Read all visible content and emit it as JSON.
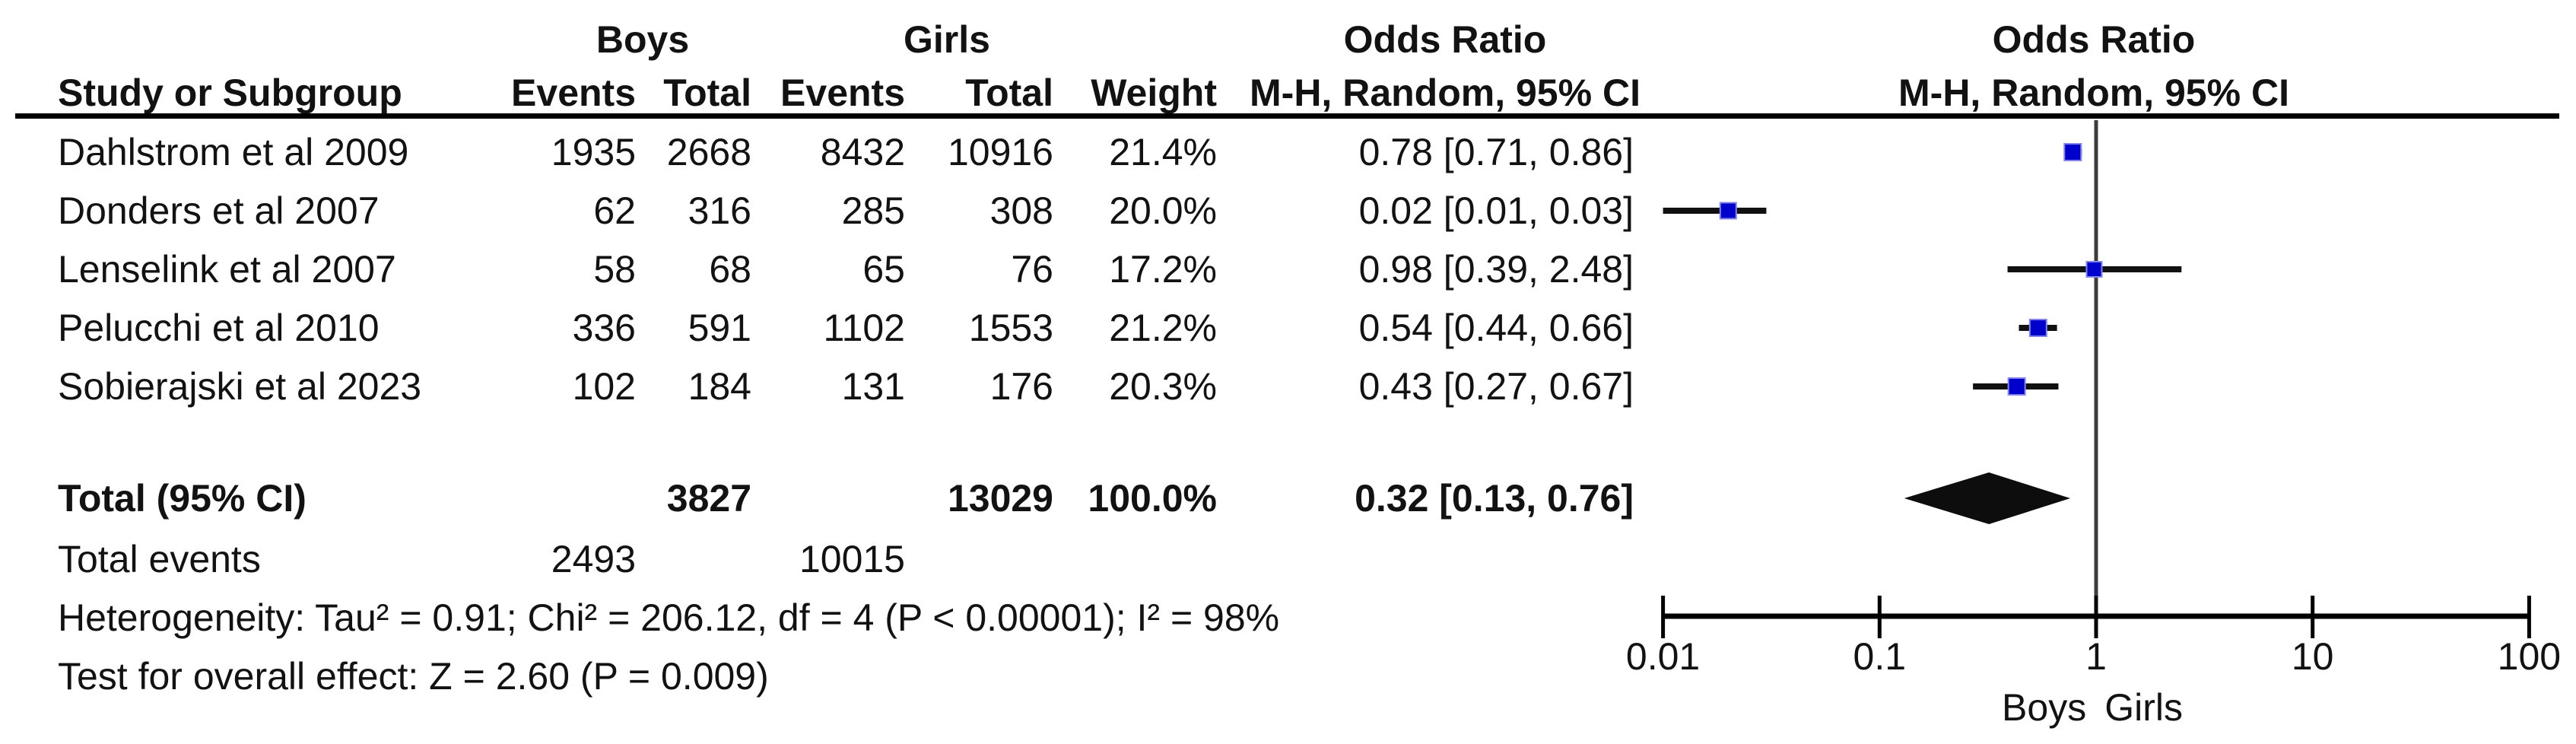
{
  "header": {
    "boys_group": "Boys",
    "girls_group": "Girls",
    "odds_ratio": "Odds Ratio",
    "method": "M-H, Random, 95% CI",
    "study": "Study or Subgroup",
    "events": "Events",
    "total": "Total",
    "weight": "Weight"
  },
  "colors": {
    "marker": "#0000cc",
    "marker_border": "#8484ea",
    "ci_line": "#111111",
    "diamond": "#0d0d0d",
    "null_line": "#3c3c3c",
    "axis": "#000000",
    "text": "#121212"
  },
  "chart_data": {
    "type": "forest",
    "effect_measure": "Odds Ratio",
    "method": "M-H, Random, 95% CI",
    "x_axis": {
      "scale": "log",
      "tick_values": [
        0.01,
        0.1,
        1,
        10,
        100
      ],
      "tick_labels": [
        "0.01",
        "0.1",
        "1",
        "10",
        "100"
      ],
      "left_label": "Boys",
      "right_label": "Girls"
    },
    "studies": [
      {
        "name": "Dahlstrom et al 2009",
        "boys_events": "1935",
        "boys_total": "2668",
        "girls_events": "8432",
        "girls_total": "10916",
        "weight_label": "21.4%",
        "weight_pct": 21.4,
        "or": 0.78,
        "ci_low": 0.71,
        "ci_high": 0.86,
        "ci_text": "0.78 [0.71, 0.86]"
      },
      {
        "name": "Donders et al 2007",
        "boys_events": "62",
        "boys_total": "316",
        "girls_events": "285",
        "girls_total": "308",
        "weight_label": "20.0%",
        "weight_pct": 20.0,
        "or": 0.02,
        "ci_low": 0.01,
        "ci_high": 0.03,
        "ci_text": "0.02 [0.01, 0.03]"
      },
      {
        "name": "Lenselink et al 2007",
        "boys_events": "58",
        "boys_total": "68",
        "girls_events": "65",
        "girls_total": "76",
        "weight_label": "17.2%",
        "weight_pct": 17.2,
        "or": 0.98,
        "ci_low": 0.39,
        "ci_high": 2.48,
        "ci_text": "0.98 [0.39, 2.48]"
      },
      {
        "name": "Pelucchi et al 2010",
        "boys_events": "336",
        "boys_total": "591",
        "girls_events": "1102",
        "girls_total": "1553",
        "weight_label": "21.2%",
        "weight_pct": 21.2,
        "or": 0.54,
        "ci_low": 0.44,
        "ci_high": 0.66,
        "ci_text": "0.54 [0.44, 0.66]"
      },
      {
        "name": "Sobierajski et al 2023",
        "boys_events": "102",
        "boys_total": "184",
        "girls_events": "131",
        "girls_total": "176",
        "weight_label": "20.3%",
        "weight_pct": 20.3,
        "or": 0.43,
        "ci_low": 0.27,
        "ci_high": 0.67,
        "ci_text": "0.43 [0.27, 0.67]"
      }
    ],
    "total": {
      "label": "Total (95% CI)",
      "boys_total": "3827",
      "girls_total": "13029",
      "weight_label": "100.0%",
      "or": 0.32,
      "ci_low": 0.13,
      "ci_high": 0.76,
      "ci_text": "0.32 [0.13, 0.76]"
    },
    "total_events": {
      "label": "Total events",
      "boys": "2493",
      "girls": "10015"
    },
    "heterogeneity": "Heterogeneity: Tau² = 0.91; Chi² = 206.12, df = 4 (P < 0.00001); I² = 98%",
    "overall_effect": "Test for overall effect: Z = 2.60 (P = 0.009)"
  }
}
